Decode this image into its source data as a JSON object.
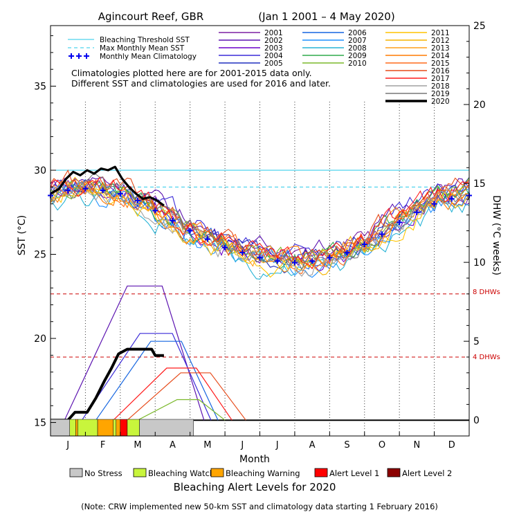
{
  "chart_data": {
    "type": "line",
    "title": "Agincourt Reef, GBR",
    "date_range": "(Jan 1 2001 – 4 May 2020)",
    "xlabel": "Month",
    "ylabel_left": "SST (°C)",
    "ylabel_right": "DHW (°C weeks)",
    "months": [
      "J",
      "F",
      "M",
      "A",
      "M",
      "J",
      "J",
      "A",
      "S",
      "O",
      "N",
      "D"
    ],
    "sst_axis": {
      "range": [
        14.2,
        38.6
      ],
      "ticks": [
        15,
        20,
        25,
        30,
        35
      ]
    },
    "dhw_axis": {
      "range": [
        -1,
        25
      ],
      "ticks": [
        0,
        5,
        10,
        15,
        20,
        25
      ]
    },
    "annotations": {
      "note_line1": "Climatologies plotted here are for 2001-2015 data only.",
      "note_line2": "Different SST and climatologies are used for 2016 and later.",
      "dhw8_label": "8 DHWs",
      "dhw4_label": "4 DHWs",
      "footnote": "(Note: CRW implemented new 50-km SST and climatology data starting 1 February 2016)"
    },
    "reference_lines": {
      "bleaching_threshold_sst": 30.0,
      "max_monthly_mean_sst": 29.0,
      "dhw_8": 8,
      "dhw_4": 4
    },
    "legend_reference": [
      {
        "name": "Bleaching Threshold SST",
        "style": "solid",
        "color": "#22c8e8"
      },
      {
        "name": "Max Monthly Mean SST",
        "style": "dashed",
        "color": "#22c8e8"
      },
      {
        "name": "Monthly Mean Climatology",
        "style": "cross",
        "color": "#0000ee"
      }
    ],
    "monthly_mean_climatology": [
      {
        "x": 0.0,
        "y": 28.5
      },
      {
        "x": 0.5,
        "y": 28.8
      },
      {
        "x": 1.0,
        "y": 28.9
      },
      {
        "x": 1.5,
        "y": 28.8
      },
      {
        "x": 2.0,
        "y": 28.6
      },
      {
        "x": 2.5,
        "y": 28.2
      },
      {
        "x": 3.0,
        "y": 27.6
      },
      {
        "x": 3.5,
        "y": 27.0
      },
      {
        "x": 4.0,
        "y": 26.4
      },
      {
        "x": 4.5,
        "y": 25.9
      },
      {
        "x": 5.0,
        "y": 25.4
      },
      {
        "x": 5.5,
        "y": 25.1
      },
      {
        "x": 6.0,
        "y": 24.8
      },
      {
        "x": 6.5,
        "y": 24.6
      },
      {
        "x": 7.0,
        "y": 24.5
      },
      {
        "x": 7.5,
        "y": 24.6
      },
      {
        "x": 8.0,
        "y": 24.8
      },
      {
        "x": 8.5,
        "y": 25.1
      },
      {
        "x": 9.0,
        "y": 25.6
      },
      {
        "x": 9.5,
        "y": 26.2
      },
      {
        "x": 10.0,
        "y": 26.9
      },
      {
        "x": 10.5,
        "y": 27.5
      },
      {
        "x": 11.0,
        "y": 28.0
      },
      {
        "x": 11.5,
        "y": 28.3
      },
      {
        "x": 12.0,
        "y": 28.5
      }
    ],
    "series": [
      {
        "name": "2001",
        "color": "#7b1fa2",
        "offset": 0.3,
        "dhw_peak": 0,
        "dhw_on": 2.8,
        "dhw_off": 4.0
      },
      {
        "name": "2002",
        "color": "#5b12b0",
        "offset": 0.6,
        "dhw_peak": 8.5,
        "dhw_on": 0.4,
        "dhw_off": 4.4
      },
      {
        "name": "2003",
        "color": "#6a00c8",
        "offset": 0.1,
        "dhw_peak": 0,
        "dhw_on": 2.8,
        "dhw_off": 4.0
      },
      {
        "name": "2004",
        "color": "#3a2ad8",
        "offset": 0.4,
        "dhw_peak": 5.5,
        "dhw_on": 0.9,
        "dhw_off": 4.6
      },
      {
        "name": "2005",
        "color": "#1f2fbf",
        "offset": 0.2,
        "dhw_peak": 0,
        "dhw_on": 2.8,
        "dhw_off": 4.0
      },
      {
        "name": "2006",
        "color": "#1565e0",
        "offset": 0.0,
        "dhw_peak": 5.0,
        "dhw_on": 1.3,
        "dhw_off": 4.8
      },
      {
        "name": "2007",
        "color": "#1e90ff",
        "offset": -0.3,
        "dhw_peak": 0,
        "dhw_on": 2.8,
        "dhw_off": 4.0
      },
      {
        "name": "2008",
        "color": "#26b3d6",
        "offset": -0.5,
        "dhw_peak": 0,
        "dhw_on": 2.8,
        "dhw_off": 4.0
      },
      {
        "name": "2009",
        "color": "#2eaa4a",
        "offset": 0.1,
        "dhw_peak": 0,
        "dhw_on": 2.8,
        "dhw_off": 4.0
      },
      {
        "name": "2010",
        "color": "#7ab82a",
        "offset": 0.3,
        "dhw_peak": 1.3,
        "dhw_on": 2.5,
        "dhw_off": 5.0
      },
      {
        "name": "2011",
        "color": "#ffc400",
        "offset": -0.2,
        "dhw_peak": 0,
        "dhw_on": 2.8,
        "dhw_off": 4.0
      },
      {
        "name": "2012",
        "color": "#f5b400",
        "offset": 0.0,
        "dhw_peak": 0,
        "dhw_on": 2.8,
        "dhw_off": 4.0
      },
      {
        "name": "2013",
        "color": "#ff9f1a",
        "offset": 0.2,
        "dhw_peak": 0,
        "dhw_on": 2.8,
        "dhw_off": 4.0
      },
      {
        "name": "2014",
        "color": "#ff7a00",
        "offset": 0.0,
        "dhw_peak": 0,
        "dhw_on": 2.8,
        "dhw_off": 4.0
      },
      {
        "name": "2015",
        "color": "#ff6a1a",
        "offset": 0.1,
        "dhw_peak": 0,
        "dhw_on": 2.8,
        "dhw_off": 4.0
      },
      {
        "name": "2016",
        "color": "#e64a19",
        "offset": 0.5,
        "dhw_peak": 3.0,
        "dhw_on": 2.2,
        "dhw_off": 5.6
      },
      {
        "name": "2017",
        "color": "#ff1a1a",
        "offset": 0.4,
        "dhw_peak": 3.3,
        "dhw_on": 1.8,
        "dhw_off": 5.2
      },
      {
        "name": "2018",
        "color": "#a0a0a0",
        "offset": -0.1,
        "dhw_peak": 0,
        "dhw_on": 2.8,
        "dhw_off": 4.0
      },
      {
        "name": "2019",
        "color": "#777777",
        "offset": 0.0,
        "dhw_peak": 0,
        "dhw_on": 2.8,
        "dhw_off": 4.0
      },
      {
        "name": "2020",
        "color": "#000000",
        "offset": 0.0,
        "dhw_peak": 4.5,
        "dhw_on": 0.3,
        "dhw_off": 3.0
      }
    ],
    "series_2020_sst": [
      {
        "x": 0.0,
        "y": 28.6
      },
      {
        "x": 0.25,
        "y": 28.9
      },
      {
        "x": 0.45,
        "y": 29.5
      },
      {
        "x": 0.65,
        "y": 29.9
      },
      {
        "x": 0.85,
        "y": 29.7
      },
      {
        "x": 1.05,
        "y": 30.0
      },
      {
        "x": 1.25,
        "y": 29.8
      },
      {
        "x": 1.45,
        "y": 30.1
      },
      {
        "x": 1.65,
        "y": 30.0
      },
      {
        "x": 1.85,
        "y": 30.2
      },
      {
        "x": 2.05,
        "y": 29.5
      },
      {
        "x": 2.25,
        "y": 29.0
      },
      {
        "x": 2.45,
        "y": 28.6
      },
      {
        "x": 2.65,
        "y": 28.3
      },
      {
        "x": 2.85,
        "y": 28.4
      },
      {
        "x": 3.05,
        "y": 28.2
      },
      {
        "x": 3.25,
        "y": 27.9
      }
    ],
    "series_2020_dhw": [
      {
        "x": 0.0,
        "y": 0
      },
      {
        "x": 0.5,
        "y": 0
      },
      {
        "x": 0.7,
        "y": 0.5
      },
      {
        "x": 1.05,
        "y": 0.5
      },
      {
        "x": 1.3,
        "y": 1.4
      },
      {
        "x": 1.55,
        "y": 2.5
      },
      {
        "x": 1.75,
        "y": 3.3
      },
      {
        "x": 1.95,
        "y": 4.2
      },
      {
        "x": 2.2,
        "y": 4.5
      },
      {
        "x": 2.6,
        "y": 4.5
      },
      {
        "x": 2.9,
        "y": 4.5
      },
      {
        "x": 3.0,
        "y": 4.1
      },
      {
        "x": 3.25,
        "y": 4.1
      }
    ],
    "alert_bar": [
      {
        "start": 0.0,
        "end": 0.55,
        "level": "No Stress"
      },
      {
        "start": 0.55,
        "end": 0.72,
        "level": "Bleaching Watch"
      },
      {
        "start": 0.72,
        "end": 0.78,
        "level": "Bleaching Warning"
      },
      {
        "start": 0.78,
        "end": 1.35,
        "level": "Bleaching Watch"
      },
      {
        "start": 1.35,
        "end": 1.8,
        "level": "Bleaching Warning"
      },
      {
        "start": 1.8,
        "end": 1.88,
        "level": "Bleaching Watch"
      },
      {
        "start": 1.88,
        "end": 2.0,
        "level": "Bleaching Warning"
      },
      {
        "start": 2.0,
        "end": 2.2,
        "level": "Alert Level 1"
      },
      {
        "start": 2.2,
        "end": 2.55,
        "level": "Bleaching Watch"
      },
      {
        "start": 2.55,
        "end": 4.1,
        "level": "No Stress"
      }
    ],
    "alert_legend_title": "Bleaching Alert Levels for 2020",
    "alert_legend": [
      {
        "name": "No Stress",
        "color": "#c8c8c8"
      },
      {
        "name": "Bleaching Watch",
        "color": "#c8f53c"
      },
      {
        "name": "Bleaching Warning",
        "color": "#ffa500"
      },
      {
        "name": "Alert Level 1",
        "color": "#ff0000"
      },
      {
        "name": "Alert Level 2",
        "color": "#8b0000"
      }
    ]
  }
}
